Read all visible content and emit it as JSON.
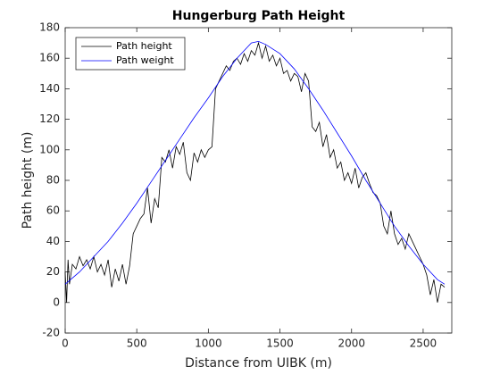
{
  "chart_data": {
    "type": "line",
    "title": "Hungerburg Path Height",
    "xlabel": "Distance from UIBK (m)",
    "ylabel": "Path height (m)",
    "xlim": [
      0,
      2700
    ],
    "ylim": [
      -20,
      180
    ],
    "xticks": [
      0,
      500,
      1000,
      1500,
      2000,
      2500
    ],
    "yticks": [
      -20,
      0,
      20,
      40,
      60,
      80,
      100,
      120,
      140,
      160,
      180
    ],
    "grid": false,
    "legend": "top-left",
    "series": [
      {
        "name": "Path height",
        "color": "#000000",
        "x": [
          0,
          10,
          20,
          30,
          50,
          75,
          100,
          125,
          150,
          175,
          200,
          225,
          250,
          275,
          300,
          325,
          350,
          375,
          400,
          425,
          450,
          475,
          500,
          525,
          550,
          575,
          600,
          625,
          650,
          675,
          700,
          725,
          750,
          775,
          800,
          825,
          850,
          875,
          900,
          925,
          950,
          975,
          1000,
          1025,
          1050,
          1075,
          1100,
          1125,
          1150,
          1175,
          1200,
          1225,
          1250,
          1275,
          1300,
          1325,
          1350,
          1375,
          1400,
          1425,
          1450,
          1475,
          1500,
          1525,
          1550,
          1575,
          1600,
          1625,
          1650,
          1675,
          1700,
          1725,
          1750,
          1775,
          1800,
          1825,
          1850,
          1875,
          1900,
          1925,
          1950,
          1975,
          2000,
          2025,
          2050,
          2075,
          2100,
          2125,
          2150,
          2175,
          2200,
          2225,
          2250,
          2275,
          2300,
          2325,
          2350,
          2375,
          2400,
          2425,
          2450,
          2475,
          2500,
          2525,
          2550,
          2575,
          2600,
          2625,
          2650
        ],
        "values": [
          20,
          0,
          28,
          12,
          25,
          22,
          30,
          24,
          28,
          22,
          30,
          20,
          25,
          18,
          28,
          10,
          22,
          14,
          25,
          12,
          24,
          45,
          50,
          55,
          58,
          75,
          52,
          68,
          62,
          95,
          92,
          100,
          88,
          102,
          97,
          105,
          85,
          80,
          98,
          92,
          100,
          95,
          100,
          102,
          140,
          145,
          150,
          155,
          152,
          158,
          160,
          156,
          163,
          158,
          165,
          162,
          170,
          160,
          168,
          158,
          162,
          155,
          160,
          150,
          152,
          145,
          150,
          148,
          138,
          150,
          145,
          115,
          112,
          118,
          102,
          110,
          95,
          100,
          88,
          92,
          80,
          85,
          78,
          88,
          75,
          82,
          85,
          78,
          72,
          70,
          65,
          50,
          45,
          60,
          45,
          38,
          42,
          35,
          45,
          40,
          35,
          30,
          25,
          18,
          5,
          15,
          0,
          12,
          10
        ]
      },
      {
        "name": "Path weight",
        "color": "#0000ff",
        "x": [
          0,
          100,
          200,
          300,
          400,
          500,
          600,
          700,
          800,
          900,
          1000,
          1100,
          1200,
          1300,
          1350,
          1400,
          1500,
          1600,
          1700,
          1800,
          1900,
          2000,
          2100,
          2200,
          2300,
          2400,
          2500,
          2600,
          2650
        ],
        "values": [
          12,
          20,
          30,
          40,
          52,
          65,
          79,
          93,
          107,
          121,
          134,
          148,
          160,
          170,
          171,
          169,
          163,
          153,
          140,
          126,
          111,
          96,
          80,
          65,
          50,
          37,
          25,
          15,
          12
        ]
      }
    ]
  }
}
